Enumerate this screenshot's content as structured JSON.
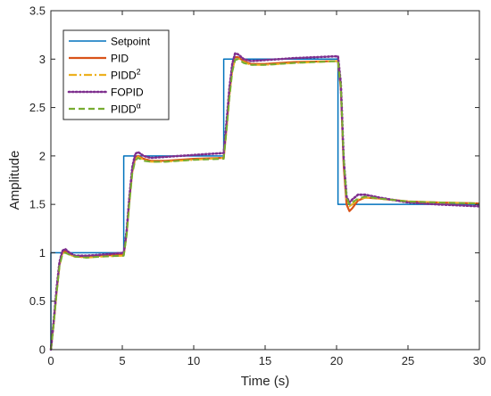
{
  "chart_data": {
    "type": "line",
    "xlabel": "Time (s)",
    "ylabel": "Amplitude",
    "xlim": [
      0,
      30
    ],
    "ylim": [
      0,
      3.5
    ],
    "x_ticks": [
      0,
      5,
      10,
      15,
      20,
      25,
      30
    ],
    "x_tick_labels": [
      "0",
      "5",
      "10",
      "15",
      "20",
      "25",
      "30"
    ],
    "y_ticks": [
      0,
      0.5,
      1,
      1.5,
      2,
      2.5,
      3,
      3.5
    ],
    "y_tick_labels": [
      "0",
      "0.5",
      "1",
      "1.5",
      "2",
      "2.5",
      "3",
      "3.5"
    ],
    "grid": false,
    "legend_position": "top-left",
    "series": [
      {
        "name": "Setpoint",
        "label_base": "Setpoint",
        "label_sup": "",
        "color": "#0072BD",
        "style": "solid",
        "points": [
          [
            0,
            0
          ],
          [
            0,
            1
          ],
          [
            5.1,
            1
          ],
          [
            5.1,
            2
          ],
          [
            12.1,
            2
          ],
          [
            12.1,
            3
          ],
          [
            20.1,
            3
          ],
          [
            20.1,
            1.5
          ],
          [
            30,
            1.5
          ]
        ]
      },
      {
        "name": "PID",
        "label_base": "PID",
        "label_sup": "",
        "color": "#D95319",
        "style": "solid",
        "points": [
          [
            0,
            0
          ],
          [
            0.2,
            0.28
          ],
          [
            0.4,
            0.6
          ],
          [
            0.6,
            0.88
          ],
          [
            0.8,
            1.0
          ],
          [
            1.0,
            1.02
          ],
          [
            1.3,
            0.99
          ],
          [
            1.7,
            0.96
          ],
          [
            2.5,
            0.96
          ],
          [
            3.5,
            0.97
          ],
          [
            5.1,
            0.98
          ],
          [
            5.3,
            1.2
          ],
          [
            5.5,
            1.55
          ],
          [
            5.7,
            1.85
          ],
          [
            5.9,
            1.98
          ],
          [
            6.1,
            2.0
          ],
          [
            6.5,
            1.97
          ],
          [
            7.0,
            1.95
          ],
          [
            8,
            1.95
          ],
          [
            10,
            1.97
          ],
          [
            12.1,
            1.98
          ],
          [
            12.3,
            2.3
          ],
          [
            12.5,
            2.65
          ],
          [
            12.7,
            2.9
          ],
          [
            12.9,
            3.02
          ],
          [
            13.1,
            3.02
          ],
          [
            13.5,
            2.98
          ],
          [
            14,
            2.95
          ],
          [
            15,
            2.95
          ],
          [
            17,
            2.97
          ],
          [
            20.1,
            2.98
          ],
          [
            20.3,
            2.7
          ],
          [
            20.5,
            1.9
          ],
          [
            20.7,
            1.5
          ],
          [
            20.9,
            1.43
          ],
          [
            21.1,
            1.46
          ],
          [
            21.5,
            1.54
          ],
          [
            22,
            1.57
          ],
          [
            23,
            1.56
          ],
          [
            25,
            1.53
          ],
          [
            27,
            1.52
          ],
          [
            30,
            1.51
          ]
        ]
      },
      {
        "name": "PIDD²",
        "label_base": "PIDD",
        "label_sup": "2",
        "color": "#EDB120",
        "style": "dashdot",
        "points": [
          [
            0,
            0
          ],
          [
            0.2,
            0.27
          ],
          [
            0.4,
            0.58
          ],
          [
            0.6,
            0.86
          ],
          [
            0.8,
            0.99
          ],
          [
            1.0,
            1.01
          ],
          [
            1.3,
            0.98
          ],
          [
            1.7,
            0.96
          ],
          [
            2.5,
            0.95
          ],
          [
            3.5,
            0.96
          ],
          [
            5.1,
            0.97
          ],
          [
            5.3,
            1.18
          ],
          [
            5.5,
            1.52
          ],
          [
            5.7,
            1.83
          ],
          [
            5.9,
            1.96
          ],
          [
            6.1,
            1.99
          ],
          [
            6.5,
            1.96
          ],
          [
            7.0,
            1.94
          ],
          [
            8,
            1.94
          ],
          [
            10,
            1.96
          ],
          [
            12.1,
            1.98
          ],
          [
            12.3,
            2.28
          ],
          [
            12.5,
            2.62
          ],
          [
            12.7,
            2.88
          ],
          [
            12.9,
            3.0
          ],
          [
            13.1,
            3.01
          ],
          [
            13.5,
            2.97
          ],
          [
            14,
            2.94
          ],
          [
            15,
            2.94
          ],
          [
            17,
            2.96
          ],
          [
            20.1,
            2.98
          ],
          [
            20.3,
            2.72
          ],
          [
            20.5,
            1.95
          ],
          [
            20.7,
            1.55
          ],
          [
            20.9,
            1.48
          ],
          [
            21.1,
            1.5
          ],
          [
            21.5,
            1.55
          ],
          [
            22,
            1.57
          ],
          [
            23,
            1.56
          ],
          [
            25,
            1.53
          ],
          [
            27,
            1.52
          ],
          [
            30,
            1.51
          ]
        ]
      },
      {
        "name": "FOPID",
        "label_base": "FOPID",
        "label_sup": "",
        "color": "#7E2F8E",
        "style": "dotted",
        "points": [
          [
            0,
            0
          ],
          [
            0.2,
            0.3
          ],
          [
            0.4,
            0.63
          ],
          [
            0.6,
            0.9
          ],
          [
            0.8,
            1.02
          ],
          [
            1.0,
            1.04
          ],
          [
            1.3,
            1.0
          ],
          [
            1.7,
            0.97
          ],
          [
            2.5,
            0.97
          ],
          [
            3.5,
            0.98
          ],
          [
            5.1,
            1.0
          ],
          [
            5.3,
            1.22
          ],
          [
            5.5,
            1.58
          ],
          [
            5.7,
            1.88
          ],
          [
            5.9,
            2.02
          ],
          [
            6.1,
            2.04
          ],
          [
            6.5,
            2.0
          ],
          [
            7.0,
            1.98
          ],
          [
            8,
            1.99
          ],
          [
            10,
            2.01
          ],
          [
            12.1,
            2.03
          ],
          [
            12.3,
            2.35
          ],
          [
            12.5,
            2.7
          ],
          [
            12.7,
            2.95
          ],
          [
            12.9,
            3.06
          ],
          [
            13.1,
            3.05
          ],
          [
            13.5,
            3.0
          ],
          [
            14,
            2.98
          ],
          [
            15,
            2.99
          ],
          [
            17,
            3.01
          ],
          [
            20.1,
            3.03
          ],
          [
            20.3,
            2.75
          ],
          [
            20.5,
            1.97
          ],
          [
            20.7,
            1.58
          ],
          [
            20.9,
            1.52
          ],
          [
            21.1,
            1.55
          ],
          [
            21.5,
            1.6
          ],
          [
            22,
            1.6
          ],
          [
            23,
            1.57
          ],
          [
            25,
            1.52
          ],
          [
            27,
            1.5
          ],
          [
            30,
            1.48
          ]
        ]
      },
      {
        "name": "PIDDα",
        "label_base": "PIDD",
        "label_sup": "α",
        "color": "#77AC30",
        "style": "dashed",
        "points": [
          [
            0,
            0
          ],
          [
            0.2,
            0.27
          ],
          [
            0.4,
            0.58
          ],
          [
            0.6,
            0.86
          ],
          [
            0.8,
            0.98
          ],
          [
            1.0,
            1.0
          ],
          [
            1.3,
            0.98
          ],
          [
            1.7,
            0.96
          ],
          [
            2.5,
            0.95
          ],
          [
            3.5,
            0.96
          ],
          [
            5.1,
            0.97
          ],
          [
            5.3,
            1.18
          ],
          [
            5.5,
            1.52
          ],
          [
            5.7,
            1.82
          ],
          [
            5.9,
            1.95
          ],
          [
            6.1,
            1.98
          ],
          [
            6.5,
            1.95
          ],
          [
            7.0,
            1.94
          ],
          [
            8,
            1.94
          ],
          [
            10,
            1.96
          ],
          [
            12.1,
            1.97
          ],
          [
            12.3,
            2.27
          ],
          [
            12.5,
            2.6
          ],
          [
            12.7,
            2.87
          ],
          [
            12.9,
            2.99
          ],
          [
            13.1,
            3.0
          ],
          [
            13.5,
            2.96
          ],
          [
            14,
            2.94
          ],
          [
            15,
            2.94
          ],
          [
            17,
            2.96
          ],
          [
            20.1,
            2.98
          ],
          [
            20.3,
            2.73
          ],
          [
            20.5,
            1.97
          ],
          [
            20.7,
            1.57
          ],
          [
            20.9,
            1.5
          ],
          [
            21.1,
            1.52
          ],
          [
            21.5,
            1.56
          ],
          [
            22,
            1.58
          ],
          [
            23,
            1.56
          ],
          [
            25,
            1.53
          ],
          [
            27,
            1.52
          ],
          [
            30,
            1.51
          ]
        ]
      }
    ]
  }
}
